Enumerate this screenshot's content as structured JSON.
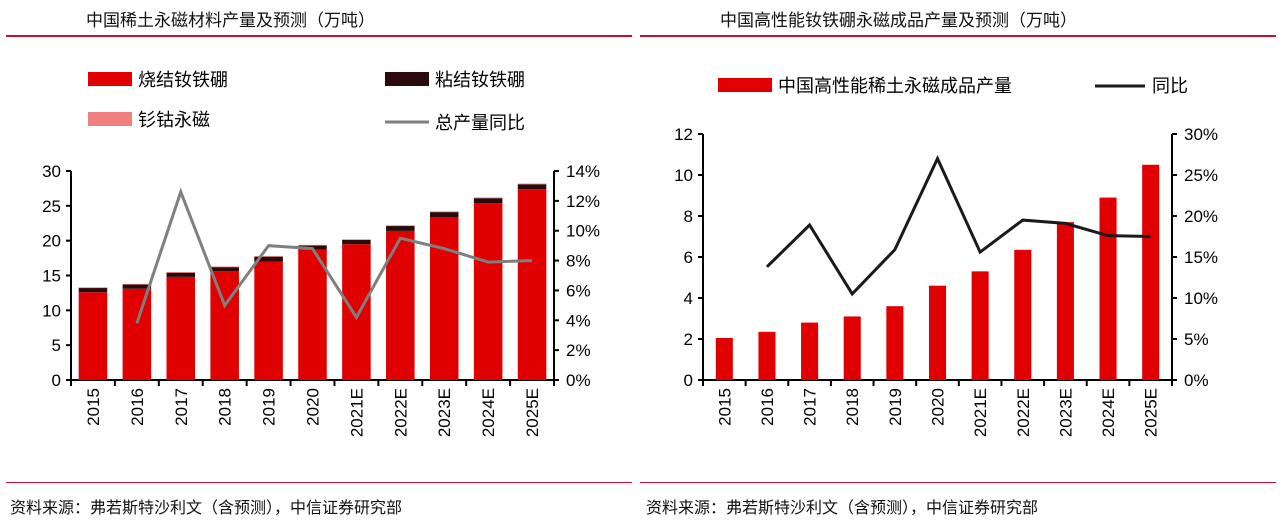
{
  "chart_data": [
    {
      "type": "bar",
      "title": "中国稀土永磁材料产量及预测（万吨）",
      "categories": [
        "2015",
        "2016",
        "2017",
        "2018",
        "2019",
        "2020",
        "2021E",
        "2022E",
        "2023E",
        "2024E",
        "2025E"
      ],
      "series": [
        {
          "name": "烧结钕铁硼",
          "kind": "stacked-bar",
          "color": "#e00000",
          "values": [
            12.6,
            13.1,
            14.8,
            15.6,
            17.0,
            18.7,
            19.5,
            21.4,
            23.4,
            25.4,
            27.4
          ]
        },
        {
          "name": "粘结钕铁硼",
          "kind": "stacked-bar",
          "color": "#2a0a0a",
          "values": [
            0.6,
            0.6,
            0.6,
            0.6,
            0.7,
            0.6,
            0.6,
            0.7,
            0.7,
            0.7,
            0.7
          ]
        },
        {
          "name": "钐钴永磁",
          "kind": "stacked-bar",
          "color": "#f08080",
          "values": [
            0.1,
            0.1,
            0.1,
            0.1,
            0.1,
            0.1,
            0.1,
            0.1,
            0.1,
            0.1,
            0.1
          ]
        },
        {
          "name": "总产量同比",
          "kind": "line",
          "axis": "right",
          "color": "#7f7f7f",
          "values": [
            null,
            3.8,
            12.6,
            5.0,
            9.0,
            8.8,
            4.2,
            9.5,
            8.8,
            7.9,
            8.0
          ]
        }
      ],
      "yleft": {
        "ticks": [
          "0",
          "5",
          "10",
          "15",
          "20",
          "25",
          "30"
        ],
        "ylim": [
          0,
          30
        ]
      },
      "yright": {
        "ticks": [
          "0%",
          "2%",
          "4%",
          "6%",
          "8%",
          "10%",
          "12%",
          "14%"
        ],
        "ylim": [
          0,
          14
        ]
      },
      "source": "资料来源：弗若斯特沙利文（含预测），中信证券研究部"
    },
    {
      "type": "bar",
      "title": "中国高性能钕铁硼永磁成品产量及预测（万吨）",
      "categories": [
        "2015",
        "2016",
        "2017",
        "2018",
        "2019",
        "2020",
        "2021E",
        "2022E",
        "2023E",
        "2024E",
        "2025E"
      ],
      "series": [
        {
          "name": "中国高性能稀土永磁成品产量",
          "kind": "bar",
          "color": "#e00000",
          "values": [
            2.05,
            2.35,
            2.8,
            3.1,
            3.6,
            4.6,
            5.3,
            6.35,
            7.7,
            8.9,
            10.5
          ]
        },
        {
          "name": "同比",
          "kind": "line",
          "axis": "right",
          "color": "#1a1a1a",
          "values": [
            null,
            13.8,
            18.9,
            10.5,
            15.9,
            27.0,
            15.6,
            19.5,
            19.1,
            17.6,
            17.5
          ]
        }
      ],
      "yleft": {
        "ticks": [
          "0",
          "2",
          "4",
          "6",
          "8",
          "10",
          "12"
        ],
        "ylim": [
          0,
          12
        ]
      },
      "yright": {
        "ticks": [
          "0%",
          "5%",
          "10%",
          "15%",
          "20%",
          "25%",
          "30%"
        ],
        "ylim": [
          0,
          30
        ]
      },
      "source": "资料来源：弗若斯特沙利文（含预测），中信证券研究部"
    }
  ]
}
